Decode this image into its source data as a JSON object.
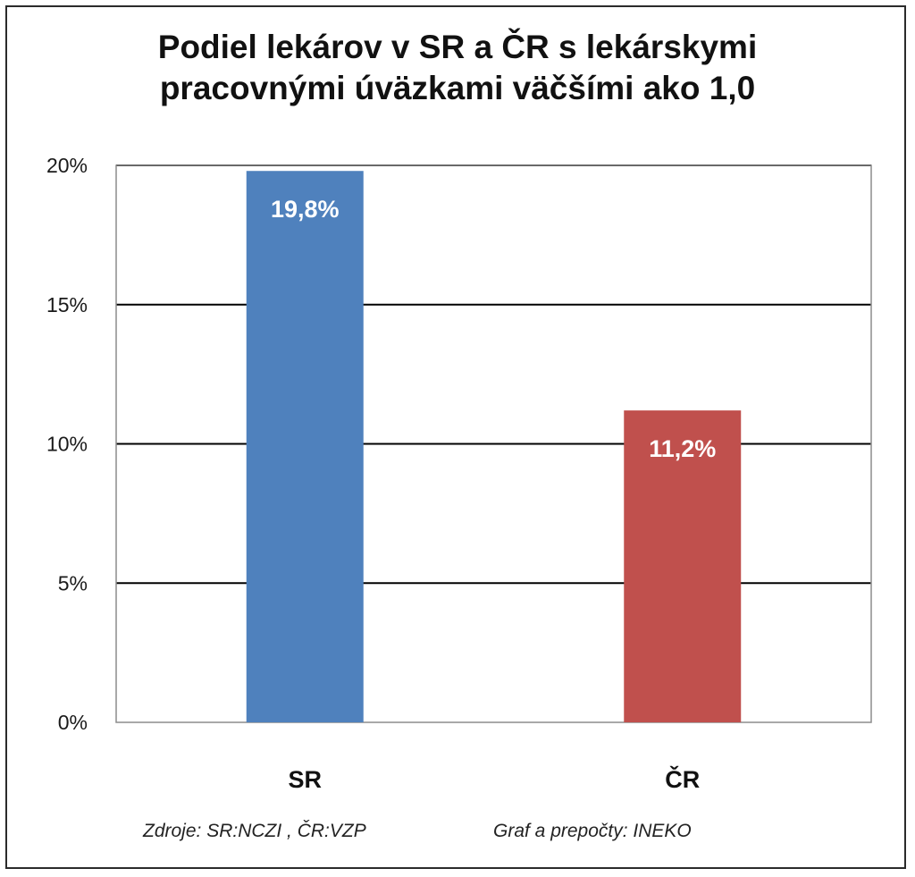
{
  "title_lines": [
    "Podiel lekárov v SR a ČR s lekárskymi",
    "pracovnými úväzkami väčšími ako 1,0"
  ],
  "sources": {
    "left": "Zdroje: SR:NCZI , ČR:VZP",
    "right": "Graf a prepočty: INEKO"
  },
  "chart_data": {
    "type": "bar",
    "title": "Podiel lekárov v SR a ČR s lekárskymi pracovnými úväzkami väčšími ako 1,0",
    "categories": [
      "SR",
      "ČR"
    ],
    "values": [
      19.8,
      11.2
    ],
    "data_labels": [
      "19,8%",
      "11,2%"
    ],
    "colors": [
      "#4f81bd",
      "#c0504d"
    ],
    "ylim": [
      0,
      20
    ],
    "yticks": [
      0,
      5,
      10,
      15,
      20
    ],
    "ytick_labels": [
      "0%",
      "5%",
      "10%",
      "15%",
      "20%"
    ],
    "grid": true,
    "legend": "none"
  }
}
